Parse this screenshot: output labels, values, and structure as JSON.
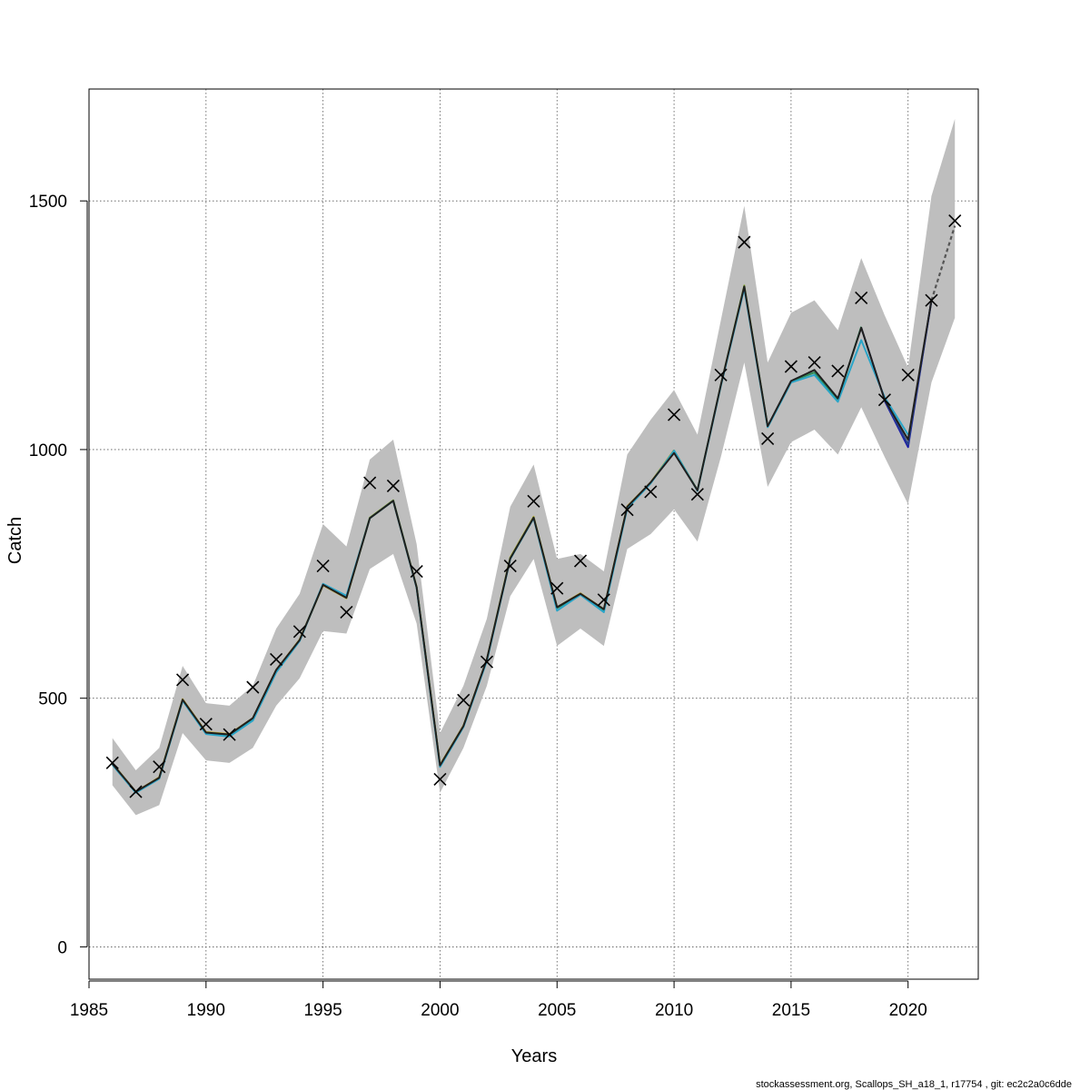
{
  "chart_data": {
    "type": "line",
    "xlabel": "Years",
    "ylabel": "Catch",
    "xlim": [
      1985,
      2023
    ],
    "ylim": [
      -65,
      1725
    ],
    "x_ticks": [
      1985,
      1990,
      1995,
      2000,
      2005,
      2010,
      2015,
      2020
    ],
    "y_ticks": [
      0,
      500,
      1000,
      1500
    ],
    "grid": true,
    "x_tick_labels": [
      "1985",
      "1990",
      "1995",
      "2000",
      "2005",
      "2010",
      "2015",
      "2020"
    ],
    "y_tick_labels": [
      "0",
      "500",
      "1000",
      "1500"
    ],
    "years": [
      1986,
      1987,
      1988,
      1989,
      1990,
      1991,
      1992,
      1993,
      1994,
      1995,
      1996,
      1997,
      1998,
      1999,
      2000,
      2001,
      2002,
      2003,
      2004,
      2005,
      2006,
      2007,
      2008,
      2009,
      2010,
      2011,
      2012,
      2013,
      2014,
      2015,
      2016,
      2017,
      2018,
      2019,
      2020,
      2021,
      2022
    ],
    "band_upper": [
      420,
      355,
      400,
      565,
      490,
      485,
      525,
      640,
      710,
      850,
      805,
      980,
      1020,
      810,
      430,
      525,
      660,
      885,
      970,
      780,
      790,
      755,
      990,
      1060,
      1120,
      1030,
      1260,
      1490,
      1175,
      1275,
      1300,
      1240,
      1385,
      1270,
      1165,
      1510,
      1665
    ],
    "band_lower": [
      325,
      265,
      285,
      430,
      375,
      370,
      400,
      485,
      540,
      635,
      630,
      760,
      790,
      650,
      310,
      400,
      525,
      705,
      780,
      605,
      640,
      605,
      800,
      830,
      880,
      815,
      985,
      1175,
      925,
      1015,
      1040,
      990,
      1085,
      985,
      890,
      1135,
      1265
    ],
    "observed": [
      370,
      312,
      362,
      537,
      448,
      427,
      522,
      578,
      634,
      766,
      673,
      933,
      927,
      755,
      337,
      496,
      573,
      766,
      896,
      721,
      776,
      698,
      879,
      915,
      1070,
      910,
      1150,
      1417,
      1022,
      1167,
      1175,
      1158,
      1305,
      1100,
      1150,
      1300,
      1460
    ],
    "series": [
      {
        "color": "#1f1f1f",
        "x": [
          1986,
          1987,
          1988,
          1989,
          1990,
          1991,
          1992,
          1993,
          1994,
          1995,
          1996,
          1997,
          1998,
          1999,
          2000,
          2001,
          2002,
          2003,
          2004,
          2005,
          2006,
          2007,
          2008,
          2009,
          2010,
          2011,
          2012,
          2013,
          2014,
          2015,
          2016,
          2017,
          2018,
          2019,
          2020,
          2021
        ],
        "values": [
          368,
          312,
          340,
          497,
          431,
          427,
          460,
          557,
          617,
          728,
          702,
          862,
          897,
          723,
          365,
          444,
          578,
          781,
          863,
          683,
          710,
          679,
          885,
          934,
          993,
          918,
          1130,
          1328,
          1047,
          1138,
          1160,
          1103,
          1245,
          1100,
          1020,
          1300
        ]
      },
      {
        "color": "#27408b",
        "x": [
          2018,
          2019,
          2020,
          2021
        ],
        "values": [
          1245,
          1100,
          1010,
          1300
        ]
      },
      {
        "color": "#1a1aa8",
        "x": [
          2019,
          2020,
          2021
        ],
        "values": [
          1098,
          1005,
          1300
        ]
      },
      {
        "color": "#2aa5c8",
        "x": [
          1986,
          1987,
          1988,
          1989,
          1990,
          1991,
          1992,
          1993,
          1994,
          1995,
          1996,
          1997,
          1998,
          1999,
          2000,
          2001,
          2002,
          2003,
          2004,
          2005,
          2006,
          2007,
          2008,
          2009,
          2010,
          2011,
          2012,
          2013,
          2014,
          2015,
          2016,
          2017,
          2018,
          2019,
          2020
        ],
        "values": [
          366,
          310,
          338,
          495,
          428,
          423,
          455,
          552,
          615,
          730,
          706,
          862,
          897,
          722,
          362,
          442,
          575,
          780,
          862,
          676,
          708,
          673,
          882,
          932,
          998,
          917,
          1128,
          1324,
          1045,
          1135,
          1150,
          1096,
          1220,
          1105,
          1030
        ]
      },
      {
        "color": "#2e8b57",
        "x": [
          1986,
          1987,
          1988,
          1989,
          1990,
          1991,
          1992,
          1993,
          1994,
          1995,
          1996,
          1997,
          1998,
          1999,
          2000,
          2001,
          2002,
          2003,
          2004,
          2005,
          2006,
          2007,
          2008,
          2009,
          2010,
          2011,
          2012,
          2013,
          2014,
          2015,
          2016,
          2017,
          2018
        ],
        "values": [
          368,
          311,
          339,
          496,
          430,
          426,
          458,
          555,
          616,
          729,
          703,
          862,
          897,
          723,
          364,
          443,
          577,
          781,
          863,
          681,
          709,
          677,
          884,
          933,
          997,
          918,
          1129,
          1327,
          1046,
          1137,
          1155,
          1100,
          1247
        ]
      },
      {
        "color": "#8fb23a",
        "x": [
          1986,
          1987,
          1988,
          1989,
          1990,
          1991,
          1992,
          1993,
          1994,
          1995,
          1996,
          1997,
          1998,
          1999,
          2000,
          2001,
          2002,
          2003,
          2004,
          2005,
          2006,
          2007,
          2008,
          2009,
          2010,
          2011,
          2012,
          2013,
          2014
        ],
        "values": [
          368,
          311,
          340,
          497,
          431,
          427,
          459,
          556,
          617,
          728,
          702,
          863,
          898,
          723,
          365,
          444,
          577,
          782,
          864,
          682,
          710,
          678,
          885,
          933,
          998,
          918,
          1130,
          1330,
          1047
        ]
      },
      {
        "color": "#c9a227",
        "x": [
          1986,
          1987,
          1988,
          1989,
          1990,
          1991,
          1992,
          1993,
          1994,
          1995,
          1996,
          1997,
          1998,
          1999,
          2000,
          2001,
          2002,
          2003,
          2004,
          2005,
          2006,
          2007,
          2008,
          2009,
          2010
        ],
        "values": [
          369,
          312,
          341,
          498,
          432,
          428,
          460,
          557,
          618,
          727,
          701,
          863,
          898,
          724,
          366,
          445,
          578,
          783,
          865,
          683,
          711,
          679,
          886,
          934,
          999
        ]
      }
    ],
    "forecast": {
      "color": "#555555",
      "x": [
        2021,
        2022
      ],
      "values": [
        1300,
        1450
      ]
    }
  },
  "footer": "stockassessment.org, Scallops_SH_a18_1, r17754 , git: ec2c2a0c6dde"
}
